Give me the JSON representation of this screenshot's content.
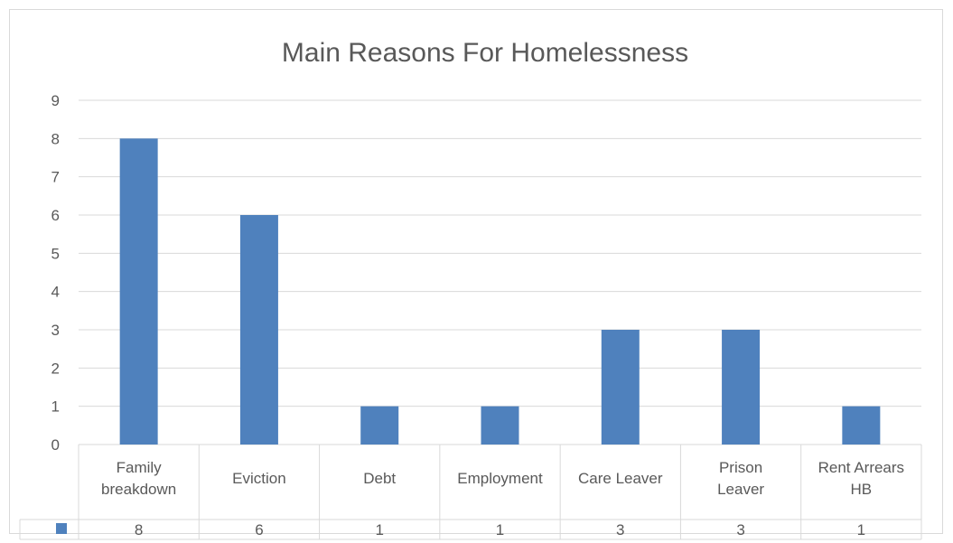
{
  "chart_data": {
    "type": "bar",
    "title": "Main Reasons For Homelessness",
    "categories": [
      [
        "Family",
        "breakdown"
      ],
      [
        "Eviction"
      ],
      [
        "Debt"
      ],
      [
        "Employment"
      ],
      [
        "Care Leaver"
      ],
      [
        "Prison",
        "Leaver"
      ],
      [
        "Rent Arrears",
        "HB"
      ]
    ],
    "values": [
      8,
      6,
      1,
      1,
      3,
      3,
      1
    ],
    "ylim": [
      0,
      9
    ],
    "yticks": [
      "0",
      "1",
      "2",
      "3",
      "4",
      "5",
      "6",
      "7",
      "8",
      "9"
    ],
    "grid": true,
    "legend": "data-table",
    "bar_color": "#4f81bd",
    "axis_color": "#d9d9d9",
    "text_color": "#595959"
  }
}
